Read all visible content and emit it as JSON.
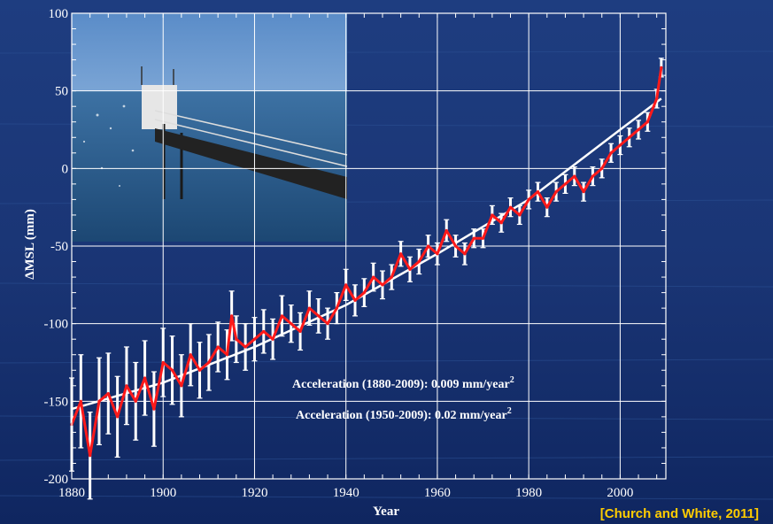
{
  "colors": {
    "trend_line": "#ff1a1a",
    "uncertainty": "#ffffff",
    "fit_line": "#ffffff",
    "citation": "#ffcc00"
  },
  "chart_data": {
    "type": "line",
    "xlabel": "Year",
    "ylabel": "ΔMSL (mm)",
    "xlim": [
      1880,
      2010
    ],
    "ylim": [
      -200,
      100
    ],
    "xticks": [
      1880,
      1900,
      1920,
      1940,
      1960,
      1980,
      2000
    ],
    "yticks": [
      100,
      50,
      0,
      -50,
      -100,
      -150,
      -200
    ],
    "grid": true,
    "annotations": [
      {
        "text": "Acceleration (1880-2009): 0.009 mm/year",
        "superscript": "2"
      },
      {
        "text": "Acceleration (1950-2009): 0.02 mm/year",
        "superscript": "2"
      }
    ],
    "citation": "[Church and White, 2011]",
    "inset": "photo-tide-gauge-pier",
    "series": [
      {
        "style": "red-line-with-white-error-bars",
        "x": [
          1880,
          1882,
          1884,
          1886,
          1888,
          1890,
          1892,
          1894,
          1896,
          1898,
          1900,
          1902,
          1904,
          1906,
          1908,
          1910,
          1912,
          1914,
          1915,
          1916,
          1918,
          1920,
          1922,
          1924,
          1926,
          1928,
          1930,
          1932,
          1934,
          1936,
          1938,
          1940,
          1942,
          1944,
          1946,
          1948,
          1950,
          1952,
          1954,
          1956,
          1958,
          1960,
          1962,
          1964,
          1966,
          1968,
          1970,
          1972,
          1974,
          1976,
          1978,
          1980,
          1982,
          1984,
          1986,
          1988,
          1990,
          1992,
          1994,
          1996,
          1998,
          2000,
          2002,
          2004,
          2006,
          2008,
          2009
        ],
        "y": [
          -165,
          -150,
          -185,
          -150,
          -145,
          -160,
          -140,
          -150,
          -135,
          -155,
          -125,
          -130,
          -140,
          -120,
          -130,
          -125,
          -115,
          -120,
          -95,
          -110,
          -115,
          -110,
          -105,
          -110,
          -95,
          -100,
          -105,
          -90,
          -95,
          -100,
          -90,
          -75,
          -85,
          -80,
          -70,
          -75,
          -70,
          -55,
          -65,
          -60,
          -50,
          -55,
          -40,
          -50,
          -55,
          -45,
          -45,
          -30,
          -35,
          -25,
          -30,
          -20,
          -15,
          -25,
          -15,
          -10,
          -5,
          -15,
          -5,
          0,
          10,
          15,
          20,
          25,
          30,
          45,
          65
        ],
        "uncertainty": [
          30,
          30,
          28,
          28,
          26,
          26,
          25,
          25,
          24,
          24,
          22,
          22,
          20,
          20,
          18,
          18,
          16,
          16,
          16,
          15,
          15,
          14,
          14,
          13,
          13,
          12,
          12,
          11,
          11,
          10,
          10,
          10,
          10,
          9,
          9,
          9,
          8,
          8,
          8,
          8,
          7,
          7,
          7,
          7,
          7,
          6,
          6,
          6,
          6,
          6,
          6,
          6,
          6,
          6,
          6,
          6,
          6,
          6,
          6,
          6,
          6,
          6,
          6,
          6,
          6,
          6,
          6
        ]
      },
      {
        "style": "white-fit-line",
        "x": [
          1880,
          1900,
          1920,
          1940,
          1960,
          1980,
          2000,
          2009
        ],
        "y": [
          -155,
          -138,
          -115,
          -88,
          -55,
          -20,
          25,
          45
        ]
      }
    ]
  }
}
